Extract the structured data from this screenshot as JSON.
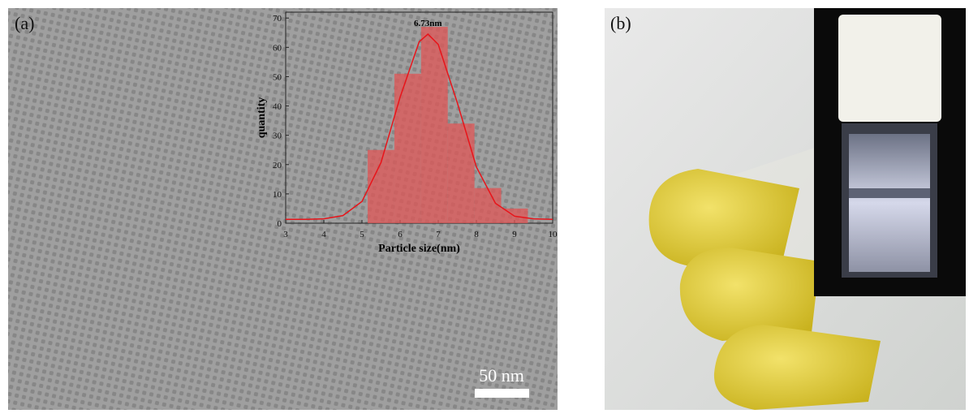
{
  "panels": [
    {
      "label": "(a)"
    },
    {
      "label": "(b)"
    }
  ],
  "scale_bar": "50 nm",
  "chart_data": {
    "type": "histogram",
    "xlabel": "Particle size(nm)",
    "ylabel": "quantity",
    "annotation": "6.73nm",
    "bins": [
      5.15,
      5.85,
      6.55,
      7.25,
      7.95,
      8.65,
      9.35
    ],
    "counts": [
      25,
      51,
      67,
      34,
      12,
      5
    ],
    "color": "#e05555",
    "fit": {
      "color": "#e8141a",
      "x": [
        3,
        3.5,
        4,
        4.5,
        5,
        5.5,
        6,
        6.5,
        6.73,
        7,
        7.5,
        8,
        8.5,
        9,
        9.5,
        10
      ],
      "values": [
        1.3,
        1.3,
        1.5,
        2.6,
        7.4,
        20.7,
        43.0,
        61.9,
        64.5,
        61.0,
        41.1,
        19.2,
        6.8,
        2.4,
        1.5,
        1.3
      ]
    },
    "xlim": [
      3,
      10
    ],
    "xticks": [
      3,
      4,
      5,
      6,
      7,
      8,
      9,
      10
    ],
    "ylim": [
      0,
      72
    ],
    "yticks": [
      0,
      10,
      20,
      30,
      40,
      50,
      60,
      70
    ]
  }
}
